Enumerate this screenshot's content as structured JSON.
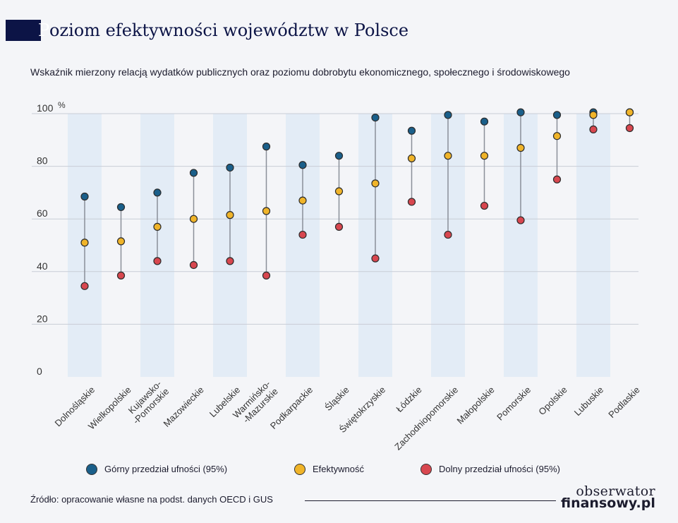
{
  "header": {
    "title_first_letter": "P",
    "title_rest": "oziom efektywności województw w Polsce",
    "subtitle": "Wskaźnik mierzony relacją wydatków publicznych oraz poziomu dobrobytu ekonomicznego, społecznego i środowiskowego"
  },
  "chart_data": {
    "type": "scatter",
    "y_unit": "%",
    "ylim": [
      0,
      100
    ],
    "yticks": [
      "0",
      "20",
      "40",
      "60",
      "80",
      "100"
    ],
    "grid": true,
    "legend_position": "bottom",
    "categories": [
      "Dolnośląskie",
      "Wielkopolskie",
      "Kujawsko-\n-Pomorskie",
      "Mazowieckie",
      "Lubelskie",
      "Warmińsko-\n-Mazurskie",
      "Podkarpackie",
      "Śląskie",
      "Świętokrzyskie",
      "Łódzkie",
      "Zachodniopomorskie",
      "Małopolskie",
      "Pomorskie",
      "Opolskie",
      "Lubuskie",
      "Podlaskie"
    ],
    "series": [
      {
        "name": "Górny przedział ufności (95%)",
        "color": "#1a5f8a",
        "values": [
          68.5,
          64.5,
          70,
          77.5,
          79.5,
          87.5,
          80.5,
          84,
          98.5,
          93.5,
          99.5,
          97,
          100.5,
          99.5,
          100.5,
          100.5
        ]
      },
      {
        "name": "Efektywność",
        "color": "#f0b429",
        "values": [
          51,
          51.5,
          57,
          60,
          61.5,
          63,
          67,
          70.5,
          73.5,
          83,
          84,
          84,
          87,
          91.5,
          99.5,
          100.5
        ]
      },
      {
        "name": "Dolny przedział ufności (95%)",
        "color": "#d8474f",
        "values": [
          34.5,
          38.5,
          44,
          42.5,
          44,
          38.5,
          54,
          57,
          45,
          66.5,
          54,
          65,
          59.5,
          75,
          94,
          94.5
        ]
      }
    ]
  },
  "footer": {
    "source": "Źródło: opracowanie własne na podst. danych OECD i GUS",
    "logo_line1": "obserwator",
    "logo_line2": "finansowy.pl"
  }
}
